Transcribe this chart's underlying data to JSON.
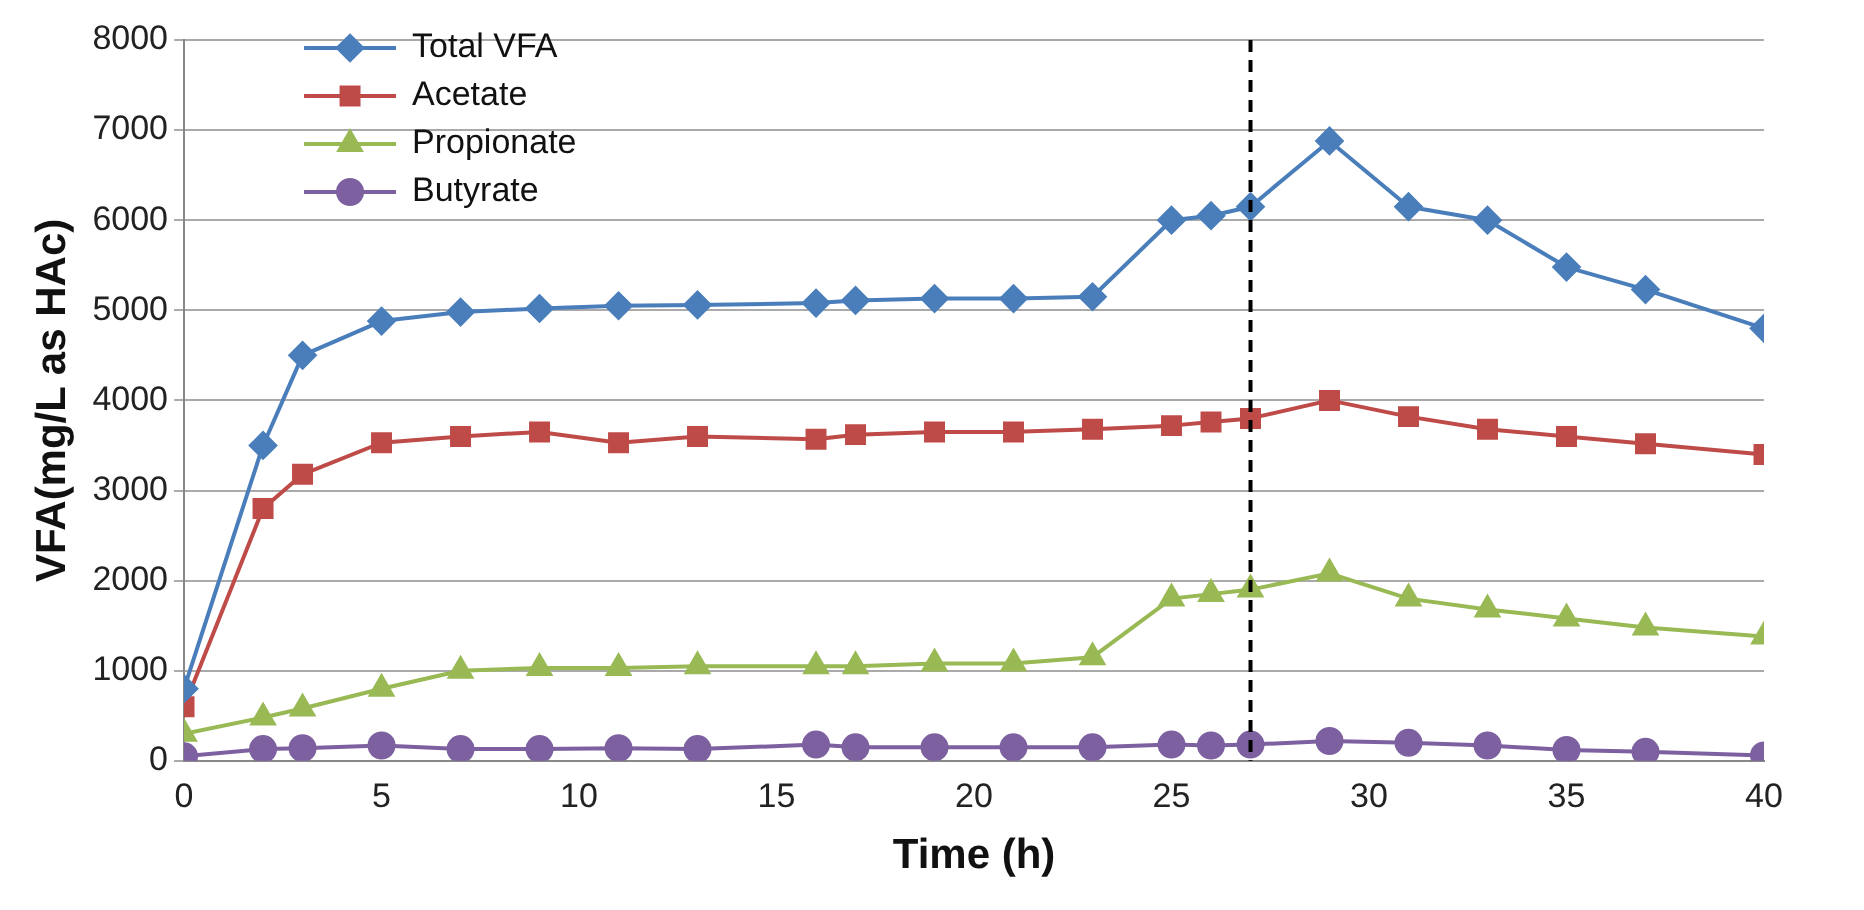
{
  "chart_data": {
    "type": "line",
    "xlabel": "Time (h)",
    "ylabel": "VFA(mg/L as HAc)",
    "x": [
      0,
      2,
      3,
      5,
      7,
      9,
      11,
      13,
      16,
      17,
      19,
      21,
      23,
      25,
      26,
      27,
      29,
      31,
      33,
      35,
      37,
      40
    ],
    "series": [
      {
        "name": "Total VFA",
        "color": "#4a7ebb",
        "marker": "diamond",
        "values": [
          800,
          3500,
          4500,
          4880,
          4980,
          5020,
          5050,
          5060,
          5080,
          5110,
          5130,
          5130,
          5150,
          6000,
          6050,
          6150,
          6880,
          6150,
          6000,
          5480,
          5230,
          4800
        ]
      },
      {
        "name": "Acetate",
        "color": "#be4b48",
        "marker": "square",
        "values": [
          600,
          2800,
          3180,
          3530,
          3600,
          3650,
          3530,
          3600,
          3570,
          3620,
          3650,
          3650,
          3680,
          3720,
          3760,
          3800,
          4000,
          3820,
          3680,
          3600,
          3520,
          3400
        ]
      },
      {
        "name": "Propionate",
        "color": "#98b954",
        "marker": "triangle",
        "values": [
          300,
          480,
          580,
          800,
          1000,
          1030,
          1030,
          1050,
          1050,
          1050,
          1080,
          1080,
          1150,
          1800,
          1850,
          1900,
          2080,
          1800,
          1680,
          1580,
          1480,
          1380
        ]
      },
      {
        "name": "Butyrate",
        "color": "#7d60a0",
        "marker": "circle",
        "values": [
          50,
          130,
          140,
          170,
          130,
          130,
          140,
          130,
          180,
          150,
          150,
          150,
          150,
          180,
          170,
          180,
          220,
          200,
          170,
          120,
          100,
          60
        ]
      }
    ],
    "xlim": [
      0,
      40
    ],
    "xticks": [
      0,
      5,
      10,
      15,
      20,
      25,
      30,
      35,
      40
    ],
    "ylim": [
      0,
      8000
    ],
    "yticks": [
      0,
      1000,
      2000,
      3000,
      4000,
      5000,
      6000,
      7000,
      8000
    ],
    "grid": "y",
    "legend": "top left",
    "line_style": "solid",
    "ref_lines": [
      {
        "axis": "x",
        "value": 27,
        "color": "#000000",
        "line_style": "dashed"
      }
    ]
  }
}
